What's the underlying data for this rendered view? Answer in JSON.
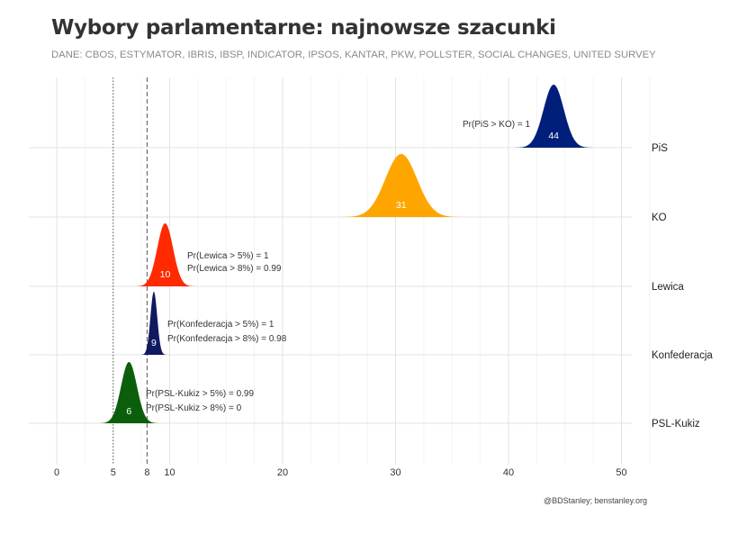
{
  "title": "Wybory parlamentarne: najnowsze szacunki",
  "subtitle": "DANE: CBOS, ESTYMATOR, IBRIS, IBSP, INDICATOR, IPSOS, KANTAR, PKW, POLLSTER, SOCIAL CHANGES, UNITED SURVEY",
  "caption": "@BDStanley; benstanley.org",
  "chart_data": {
    "type": "area",
    "xlim": [
      -2.5,
      53
    ],
    "x_ticks": [
      0,
      5,
      8,
      10,
      20,
      30,
      40,
      50
    ],
    "x_tick_labels": [
      "0",
      "5",
      "8",
      "10",
      "20",
      "30",
      "40",
      "50"
    ],
    "reference_lines": [
      {
        "x": 5,
        "style": "dotted"
      },
      {
        "x": 8,
        "style": "dashed"
      }
    ],
    "grid": true,
    "series": [
      {
        "name": "PiS",
        "color": "#001f7a",
        "mean": 44.0,
        "sd": 0.9,
        "label": "44",
        "annotations": [
          "Pr(PiS > KO)  =  1"
        ]
      },
      {
        "name": "KO",
        "color": "#ffa500",
        "mean": 30.5,
        "sd": 1.4,
        "label": "31",
        "annotations": []
      },
      {
        "name": "Lewica",
        "color": "#ff2a00",
        "mean": 9.6,
        "sd": 0.7,
        "label": "10",
        "annotations": [
          "Pr(Lewica > 5%)  =  1",
          "Pr(Lewica > 8%)  =  0.99"
        ]
      },
      {
        "name": "Konfederacja",
        "color": "#0f1a60",
        "mean": 8.6,
        "sd": 0.3,
        "label": "9",
        "annotations": [
          "Pr(Konfederacja > 5%)  =  1",
          "Pr(Konfederacja > 8%)  =  0.98"
        ]
      },
      {
        "name": "PSL-Kukiz",
        "color": "#0b5f0b",
        "mean": 6.4,
        "sd": 0.7,
        "label": "6",
        "annotations": [
          "Pr(PSL-Kukiz > 5%)  =  0.99",
          "Pr(PSL-Kukiz > 8%)  =  0"
        ]
      }
    ]
  }
}
